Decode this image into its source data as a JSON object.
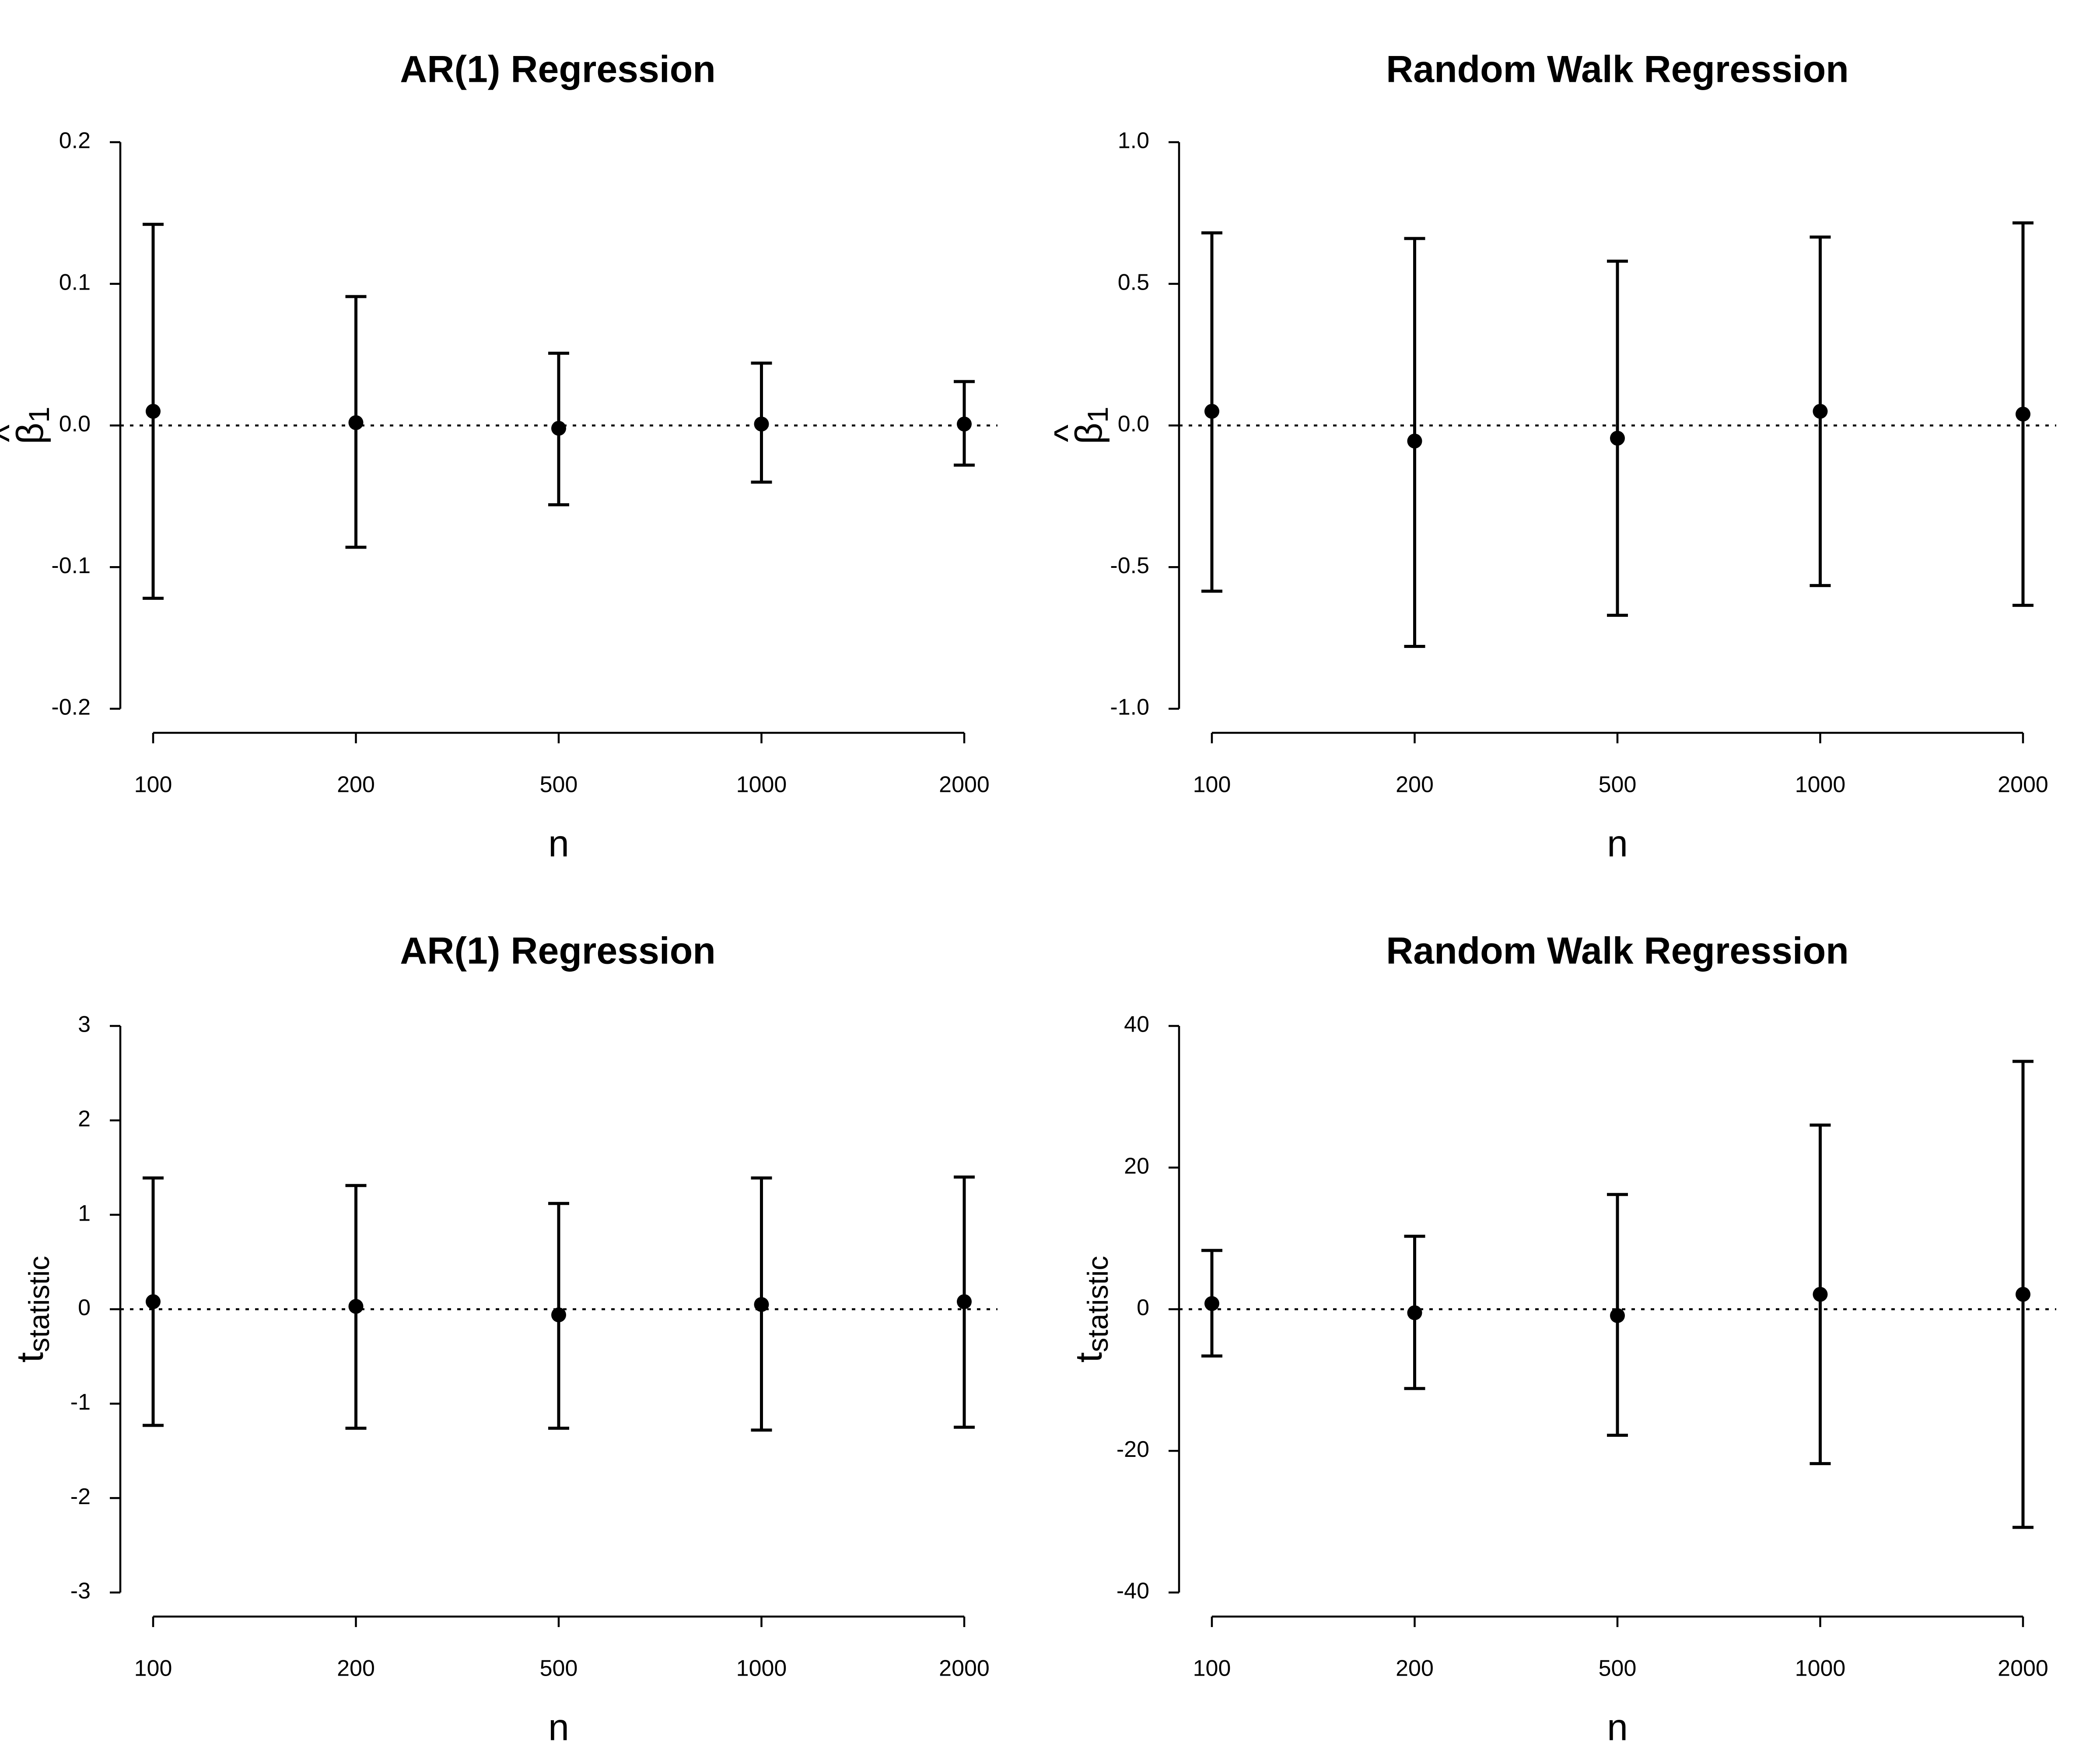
{
  "chart_data": [
    {
      "type": "errorbar",
      "title": "AR(1) Regression",
      "xlabel": "n",
      "ylabel": "β̂1",
      "ylabel_parts": {
        "symbol": "β",
        "hat": "^",
        "subscript": "1"
      },
      "categories": [
        "100",
        "200",
        "500",
        "1000",
        "2000"
      ],
      "y": [
        0.01,
        0.002,
        -0.002,
        0.001,
        0.001
      ],
      "lower": [
        -0.122,
        -0.086,
        -0.056,
        -0.04,
        -0.028
      ],
      "upper": [
        0.142,
        0.091,
        0.051,
        0.044,
        0.031
      ],
      "ylim": [
        -0.2,
        0.2
      ],
      "yticks": [
        -0.2,
        -0.1,
        0.0,
        0.1,
        0.2
      ],
      "ytick_labels": [
        "-0.2",
        "-0.1",
        "0.0",
        "0.1",
        "0.2"
      ],
      "reference_line": 0,
      "grid": false
    },
    {
      "type": "errorbar",
      "title": "Random Walk Regression",
      "xlabel": "n",
      "ylabel": "β̂1",
      "ylabel_parts": {
        "symbol": "β",
        "hat": "^",
        "subscript": "1"
      },
      "categories": [
        "100",
        "200",
        "500",
        "1000",
        "2000"
      ],
      "y": [
        0.05,
        -0.055,
        -0.045,
        0.05,
        0.04
      ],
      "lower": [
        -0.585,
        -0.78,
        -0.67,
        -0.565,
        -0.635
      ],
      "upper": [
        0.68,
        0.66,
        0.58,
        0.665,
        0.715
      ],
      "ylim": [
        -1.0,
        1.0
      ],
      "yticks": [
        -1.0,
        -0.5,
        0.0,
        0.5,
        1.0
      ],
      "ytick_labels": [
        "-1.0",
        "-0.5",
        "0.0",
        "0.5",
        "1.0"
      ],
      "reference_line": 0,
      "grid": false
    },
    {
      "type": "errorbar",
      "title": "AR(1) Regression",
      "xlabel": "n",
      "ylabel": "tstatistic",
      "ylabel_parts": {
        "symbol": "t",
        "hat": "",
        "subscript": "statistic"
      },
      "categories": [
        "100",
        "200",
        "500",
        "1000",
        "2000"
      ],
      "y": [
        0.08,
        0.03,
        -0.06,
        0.05,
        0.08
      ],
      "lower": [
        -1.23,
        -1.26,
        -1.26,
        -1.28,
        -1.25
      ],
      "upper": [
        1.39,
        1.31,
        1.12,
        1.39,
        1.4
      ],
      "ylim": [
        -3,
        3
      ],
      "yticks": [
        -3,
        -2,
        -1,
        0,
        1,
        2,
        3
      ],
      "ytick_labels": [
        "-3",
        "-2",
        "-1",
        "0",
        "1",
        "2",
        "3"
      ],
      "reference_line": 0,
      "grid": false
    },
    {
      "type": "errorbar",
      "title": "Random Walk Regression",
      "xlabel": "n",
      "ylabel": "tstatistic",
      "ylabel_parts": {
        "symbol": "t",
        "hat": "",
        "subscript": "statistic"
      },
      "categories": [
        "100",
        "200",
        "500",
        "1000",
        "2000"
      ],
      "y": [
        0.8,
        -0.5,
        -0.9,
        2.1,
        2.1
      ],
      "lower": [
        -6.6,
        -11.2,
        -17.8,
        -21.8,
        -30.8
      ],
      "upper": [
        8.3,
        10.3,
        16.2,
        26.0,
        35.0
      ],
      "ylim": [
        -40,
        40
      ],
      "yticks": [
        -40,
        -20,
        0,
        20,
        40
      ],
      "ytick_labels": [
        "-40",
        "-20",
        "0",
        "20",
        "40"
      ],
      "reference_line": 0,
      "grid": false
    }
  ]
}
